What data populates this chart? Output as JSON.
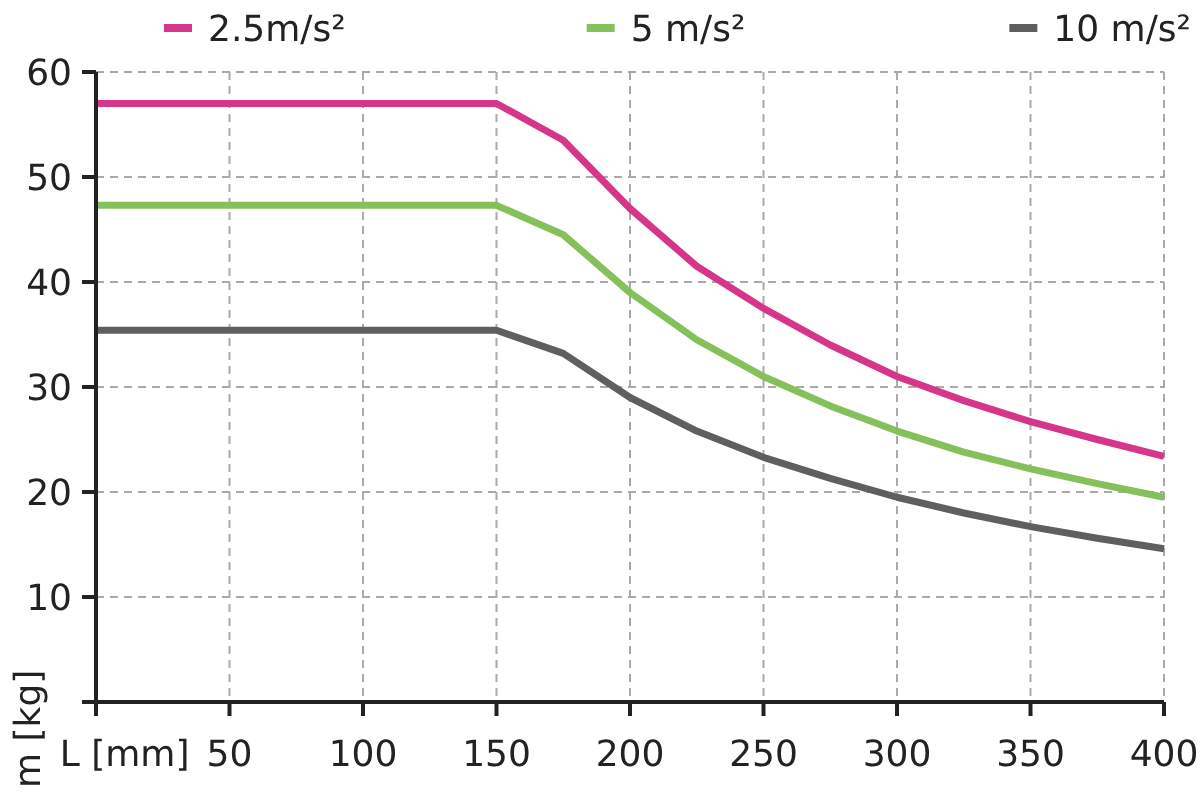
{
  "chart_data": {
    "type": "line",
    "xlabel": "L [mm]",
    "ylabel": "m [kg]",
    "x": [
      0,
      150,
      175,
      200,
      225,
      250,
      275,
      300,
      325,
      350,
      375,
      400
    ],
    "series": [
      {
        "name": "2.5m/s²",
        "color": "#d6368a",
        "values": [
          57,
          57,
          53.5,
          47,
          41.5,
          37.5,
          34,
          31,
          28.7,
          26.7,
          25,
          23.4
        ]
      },
      {
        "name": "5 m/s²",
        "color": "#86c05a",
        "values": [
          47.3,
          47.3,
          44.5,
          39,
          34.5,
          31,
          28.2,
          25.8,
          23.8,
          22.2,
          20.8,
          19.5
        ]
      },
      {
        "name": "10 m/s²",
        "color": "#5f5f5f",
        "values": [
          35.4,
          35.4,
          33.2,
          29,
          25.8,
          23.3,
          21.3,
          19.5,
          18,
          16.7,
          15.6,
          14.6
        ]
      }
    ],
    "xlim": [
      0,
      400
    ],
    "ylim": [
      0,
      60
    ],
    "xticks": [
      {
        "value": 0,
        "label": null
      },
      50,
      100,
      150,
      200,
      250,
      300,
      350,
      400
    ],
    "yticks": [
      {
        "value": 0,
        "label": null
      },
      10,
      20,
      30,
      40,
      50,
      60
    ],
    "grid": true,
    "legend": "top",
    "marker": "none",
    "line_style": "solid"
  }
}
